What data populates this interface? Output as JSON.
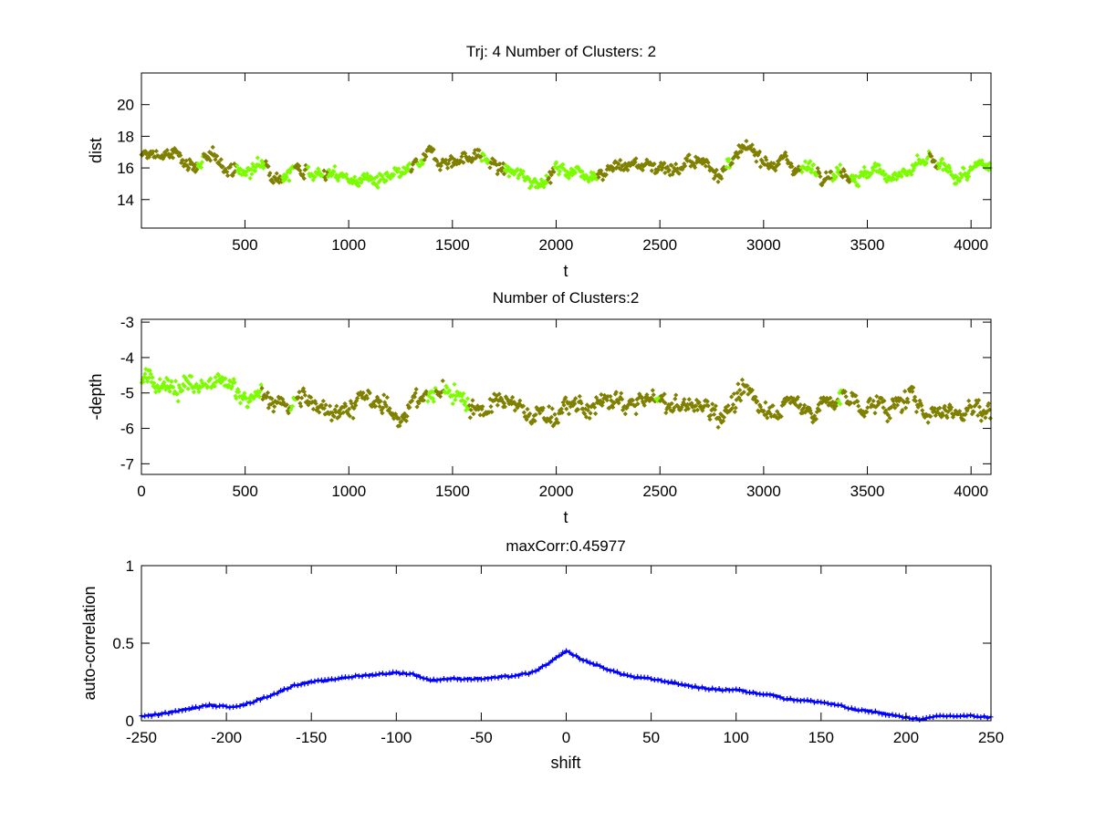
{
  "colors": {
    "cluster_a": "#808000",
    "cluster_b": "#7CFC00",
    "corr": "#0000FF",
    "axis": "#000000"
  },
  "chart_data": [
    {
      "type": "scatter",
      "title": "Trj: 4 Number of Clusters: 2",
      "xlabel": "t",
      "ylabel": "dist",
      "xlim": [
        1,
        4096
      ],
      "ylim": [
        12.2,
        22
      ],
      "xticks": [
        500,
        1000,
        1500,
        2000,
        2500,
        3000,
        3500,
        4000
      ],
      "yticks": [
        14,
        16,
        18,
        20
      ],
      "trend_t": [
        0,
        100,
        200,
        300,
        400,
        500,
        600,
        700,
        800,
        900,
        1000,
        1100,
        1200,
        1300,
        1400,
        1500,
        1600,
        1700,
        1800,
        1900,
        2000,
        2100,
        2200,
        2300,
        2400,
        2500,
        2600,
        2700,
        2800,
        2900,
        3000,
        3100,
        3200,
        3300,
        3400,
        3500,
        3600,
        3700,
        3800,
        3900,
        4000,
        4096
      ],
      "trend_value": [
        16.6,
        16.9,
        16.5,
        16.3,
        16.3,
        15.7,
        16.2,
        15.9,
        16.2,
        15.6,
        15.3,
        15.3,
        14.9,
        15.6,
        16.6,
        16.6,
        16.9,
        16.2,
        15.4,
        15.3,
        15.9,
        15.9,
        16.0,
        16.2,
        16.3,
        16.2,
        16.2,
        16.2,
        16.0,
        16.7,
        16.8,
        16.4,
        16.0,
        16.1,
        16.0,
        15.6,
        15.7,
        15.7,
        16.2,
        15.4,
        15.6,
        15.9
      ],
      "noise": 0.35,
      "cluster_b_ranges": [
        [
          270,
          300
        ],
        [
          460,
          600
        ],
        [
          680,
          740
        ],
        [
          800,
          880
        ],
        [
          900,
          1300
        ],
        [
          1330,
          1360
        ],
        [
          1640,
          1680
        ],
        [
          1750,
          1960
        ],
        [
          1990,
          2200
        ],
        [
          2820,
          2840
        ],
        [
          3180,
          3260
        ],
        [
          3330,
          3370
        ],
        [
          3420,
          3800
        ],
        [
          3840,
          4096
        ]
      ]
    },
    {
      "type": "scatter",
      "title": "Number of Clusters:2",
      "xlabel": "t",
      "ylabel": "-depth",
      "xlim": [
        0,
        4096
      ],
      "ylim": [
        -7.3,
        -2.92
      ],
      "xticks": [
        0,
        500,
        1000,
        1500,
        2000,
        2500,
        3000,
        3500,
        4000
      ],
      "yticks": [
        -7,
        -6,
        -5,
        -4,
        -3
      ],
      "trend_t": [
        0,
        100,
        200,
        300,
        400,
        500,
        600,
        700,
        800,
        900,
        1000,
        1100,
        1200,
        1300,
        1400,
        1500,
        1600,
        1700,
        1800,
        1900,
        2000,
        2100,
        2200,
        2300,
        2400,
        2500,
        2600,
        2700,
        2800,
        2900,
        3000,
        3100,
        3200,
        3300,
        3400,
        3500,
        3600,
        3700,
        3800,
        3900,
        4000,
        4096
      ],
      "trend_value": [
        -4.6,
        -4.5,
        -4.8,
        -4.9,
        -4.9,
        -4.9,
        -5.3,
        -5.3,
        -5.3,
        -5.3,
        -5.3,
        -5.3,
        -5.6,
        -5.3,
        -5.1,
        -4.9,
        -5.3,
        -5.4,
        -5.5,
        -5.6,
        -5.5,
        -5.5,
        -5.4,
        -5.3,
        -5.3,
        -5.3,
        -5.4,
        -5.4,
        -5.4,
        -5.2,
        -5.3,
        -5.3,
        -5.4,
        -5.3,
        -5.2,
        -5.3,
        -5.4,
        -5.3,
        -5.4,
        -5.4,
        -5.4,
        -5.5
      ],
      "noise": 0.22,
      "cluster_b_ranges": [
        [
          0,
          580
        ],
        [
          720,
          745
        ],
        [
          1380,
          1420
        ],
        [
          1460,
          1580
        ],
        [
          2480,
          2500
        ],
        [
          3360,
          3380
        ]
      ]
    },
    {
      "type": "line",
      "title": "maxCorr:0.45977",
      "xlabel": "shift",
      "ylabel": "auto-correlation",
      "xlim": [
        -250,
        250
      ],
      "ylim": [
        0,
        1
      ],
      "xticks": [
        -250,
        -200,
        -150,
        -100,
        -50,
        0,
        50,
        100,
        150,
        200,
        250
      ],
      "yticks": [
        0,
        0.5,
        1
      ],
      "x": [
        -250,
        -240,
        -230,
        -220,
        -210,
        -200,
        -190,
        -180,
        -170,
        -160,
        -150,
        -140,
        -130,
        -120,
        -110,
        -100,
        -90,
        -80,
        -70,
        -60,
        -50,
        -40,
        -30,
        -20,
        -10,
        0,
        10,
        20,
        30,
        40,
        50,
        60,
        70,
        80,
        90,
        100,
        110,
        120,
        130,
        140,
        150,
        160,
        170,
        180,
        190,
        200,
        210,
        220,
        230,
        240,
        250
      ],
      "y": [
        0.03,
        0.04,
        0.06,
        0.08,
        0.1,
        0.09,
        0.1,
        0.14,
        0.18,
        0.23,
        0.25,
        0.26,
        0.28,
        0.29,
        0.3,
        0.31,
        0.3,
        0.26,
        0.27,
        0.27,
        0.27,
        0.28,
        0.29,
        0.31,
        0.37,
        0.45,
        0.39,
        0.35,
        0.31,
        0.28,
        0.27,
        0.25,
        0.23,
        0.21,
        0.2,
        0.2,
        0.18,
        0.17,
        0.14,
        0.13,
        0.12,
        0.1,
        0.07,
        0.06,
        0.04,
        0.02,
        0.01,
        0.03,
        0.03,
        0.03,
        0.02
      ]
    }
  ]
}
